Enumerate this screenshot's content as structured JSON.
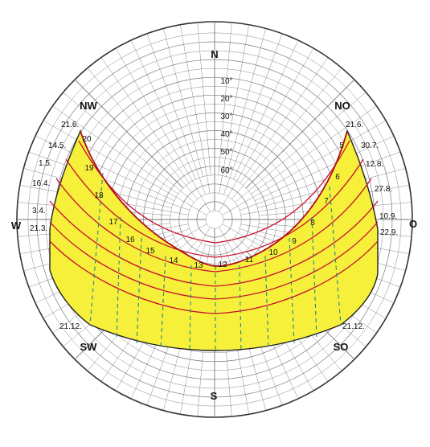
{
  "colors": {
    "background": "#ffffff",
    "grid": "#7a7a7a",
    "fill": "#f6f03a",
    "boundary": "#b01020",
    "date_line": "#c8102e",
    "hour_line": "#1f8a8a"
  },
  "compass": {
    "north": "N",
    "south": "S",
    "west": "W",
    "east": "O",
    "northwest": "NW",
    "northeast": "NO",
    "southwest": "SW",
    "southeast": "SO"
  },
  "altitudes": [
    "10°",
    "20°",
    "30°",
    "40°",
    "50°",
    "60°"
  ],
  "hours": {
    "west_side": [
      "20",
      "19",
      "18",
      "17",
      "16",
      "15",
      "14",
      "13"
    ],
    "east_side": [
      "5",
      "6",
      "7",
      "8",
      "9",
      "10",
      "11",
      "12"
    ]
  },
  "dates": {
    "left": [
      "21.6.",
      "14.5.",
      "1.5.",
      "16.4.",
      "3.4.",
      "21.3.",
      "21.12."
    ],
    "right": [
      "21.6.",
      "30.7.",
      "12.8.",
      "27.8.",
      "10.9.",
      "22.9.",
      "21.12."
    ]
  }
}
